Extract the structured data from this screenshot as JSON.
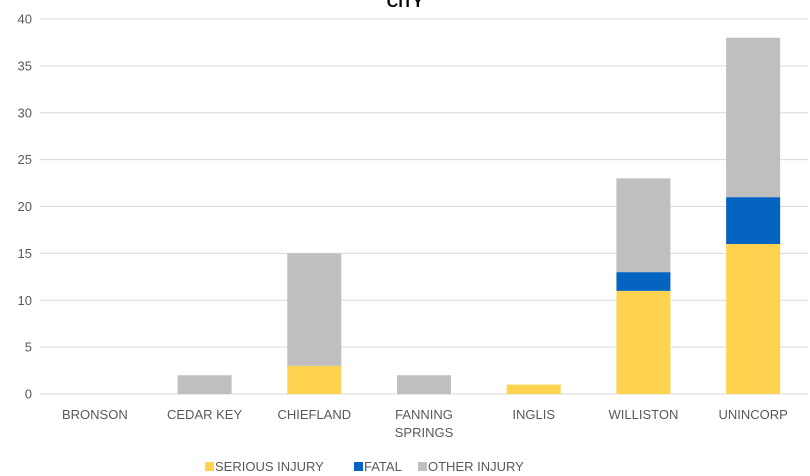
{
  "chart_data": {
    "type": "bar",
    "stacked": true,
    "title": "CITY",
    "categories": [
      "BRONSON",
      "CEDAR KEY",
      "CHIEFLAND",
      "FANNING SPRINGS",
      "INGLIS",
      "WILLISTON",
      "UNINCORP"
    ],
    "category_lines": [
      [
        "BRONSON"
      ],
      [
        "CEDAR KEY"
      ],
      [
        "CHIEFLAND"
      ],
      [
        "FANNING",
        "SPRINGS"
      ],
      [
        "INGLIS"
      ],
      [
        "WILLISTON"
      ],
      [
        "UNINCORP"
      ]
    ],
    "series": [
      {
        "name": "SERIOUS INJURY",
        "color": "#FFD250",
        "values": [
          0,
          0,
          3,
          0,
          1,
          11,
          16
        ]
      },
      {
        "name": "FATAL",
        "color": "#0563C1",
        "values": [
          0,
          0,
          0,
          0,
          0,
          2,
          5
        ]
      },
      {
        "name": "OTHER INJURY",
        "color": "#BFBFBF",
        "values": [
          0,
          2,
          12,
          2,
          0,
          10,
          17
        ]
      }
    ],
    "ylim": [
      0,
      40
    ],
    "yticks": [
      0,
      5,
      10,
      15,
      20,
      25,
      30,
      35,
      40
    ],
    "grid": true,
    "legend_position": "bottom"
  }
}
